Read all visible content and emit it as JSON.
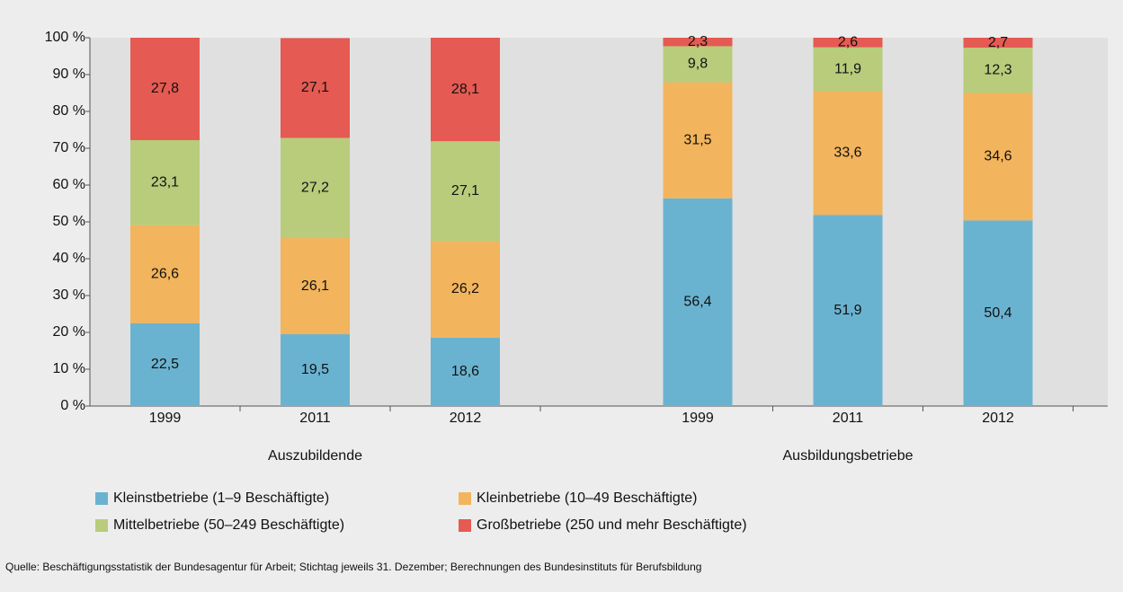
{
  "chart_data": {
    "type": "stacked_bar",
    "groups": [
      {
        "name": "Auszubildende",
        "categories": [
          "1999",
          "2011",
          "2012"
        ]
      },
      {
        "name": "Ausbildungsbetriebe",
        "categories": [
          "1999",
          "2011",
          "2012"
        ]
      }
    ],
    "series": [
      {
        "name": "Kleinstbetriebe (1–9 Beschäftigte)",
        "color": "#6ab3d0",
        "values": [
          22.5,
          19.5,
          18.6,
          56.4,
          51.9,
          50.4
        ],
        "value_labels": [
          "22,5",
          "19,5",
          "18,6",
          "56,4",
          "51,9",
          "50,4"
        ]
      },
      {
        "name": "Kleinbetriebe (10–49 Beschäftigte)",
        "color": "#f2b45c",
        "values": [
          26.6,
          26.1,
          26.2,
          31.5,
          33.6,
          34.6
        ],
        "value_labels": [
          "26,6",
          "26,1",
          "26,2",
          "31,5",
          "33,6",
          "34,6"
        ]
      },
      {
        "name": "Mittelbetriebe (50–249 Beschäftigte)",
        "color": "#b8cc7c",
        "values": [
          23.1,
          27.2,
          27.1,
          9.8,
          11.9,
          12.3
        ],
        "value_labels": [
          "23,1",
          "27,2",
          "27,1",
          "9,8",
          "11,9",
          "12,3"
        ]
      },
      {
        "name": "Großbetriebe (250 und mehr Beschäftigte)",
        "color": "#e55a52",
        "values": [
          27.8,
          27.1,
          28.1,
          2.3,
          2.6,
          2.7
        ],
        "value_labels": [
          "27,8",
          "27,1",
          "28,1",
          "2,3",
          "2,6",
          "2,7"
        ]
      }
    ],
    "ylim": [
      0,
      100
    ],
    "yticks": [
      {
        "value": 0,
        "label": "0 %"
      },
      {
        "value": 10,
        "label": "10 %"
      },
      {
        "value": 20,
        "label": "20 %"
      },
      {
        "value": 30,
        "label": "30 %"
      },
      {
        "value": 40,
        "label": "40 %"
      },
      {
        "value": 50,
        "label": "50 %"
      },
      {
        "value": 60,
        "label": "60 %"
      },
      {
        "value": 70,
        "label": "70 %"
      },
      {
        "value": 80,
        "label": "80 %"
      },
      {
        "value": 90,
        "label": "90 %"
      },
      {
        "value": 100,
        "label": "100 %"
      }
    ],
    "source": "Quelle: Beschäftigungsstatistik der Bundesagentur für Arbeit; Stichtag jeweils 31. Dezember; Berechnungen des Bundesinstituts für Berufsbildung"
  }
}
